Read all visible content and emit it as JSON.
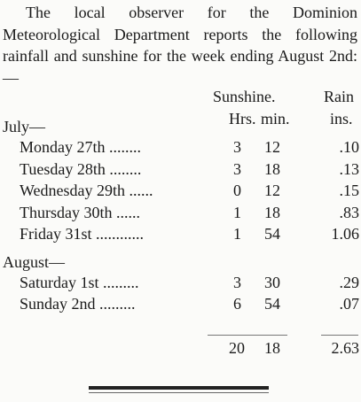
{
  "intro": "The local observer for the Dominion Meteorological Department reports the following rainfall and sunshine for the week ending August 2nd:—",
  "table": {
    "header": {
      "sunshine": "Sunshine.",
      "rain": "Rain",
      "hrs": "Hrs.",
      "min": "min.",
      "ins": "ins."
    },
    "groups": [
      {
        "label": "July—",
        "rows": [
          [
            "Monday 27th ........",
            "3",
            "12",
            ".10"
          ],
          [
            "Tuesday 28th ........",
            "3",
            "18",
            ".13"
          ],
          [
            "Wednesday 29th ......",
            "0",
            "12",
            ".15"
          ],
          [
            "Thursday 30th ......",
            "1",
            "18",
            ".83"
          ],
          [
            "Friday 31st ............",
            "1",
            "54",
            "1.06"
          ]
        ]
      },
      {
        "label": "August—",
        "rows": [
          [
            "Saturday 1st .........",
            "3",
            "30",
            ".29"
          ],
          [
            "Sunday 2nd .........",
            "6",
            "54",
            ".07"
          ]
        ]
      }
    ],
    "totals": [
      "20",
      "18",
      "2.63"
    ]
  }
}
